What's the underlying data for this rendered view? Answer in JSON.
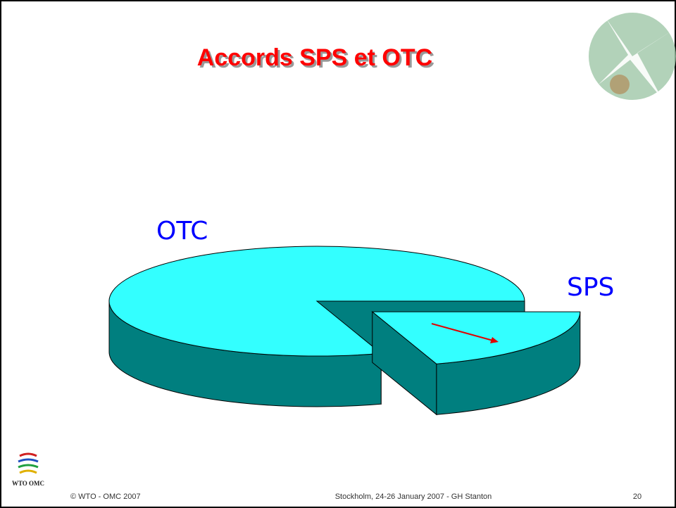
{
  "chart_data": {
    "type": "pie",
    "title": "Accords SPS et OTC",
    "categories": [
      "OTC",
      "SPS"
    ],
    "values": [
      80,
      20
    ],
    "colors": [
      "#33ffff",
      "#33ffff"
    ],
    "side_color": "#007f7f",
    "exploded": "SPS"
  },
  "logo": "WTO OMC",
  "footer": {
    "copyright": "© WTO - OMC 2007",
    "event": "Stockholm, 24-26 January 2007 - GH Stanton",
    "page": "20"
  }
}
